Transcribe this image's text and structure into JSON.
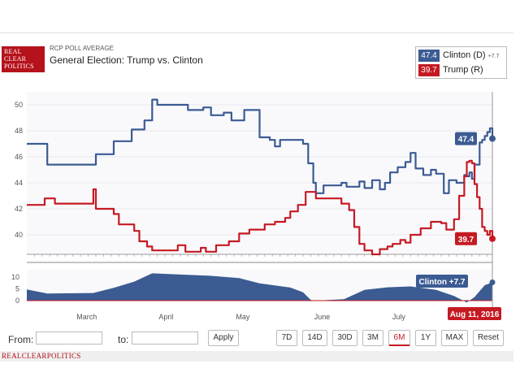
{
  "header": {
    "logo_lines": [
      "REAL",
      "CLEAR",
      "POLITICS"
    ],
    "subtitle": "RCP POLL AVERAGE",
    "title": "General Election: Trump vs. Clinton"
  },
  "legend": [
    {
      "value": "47.4",
      "label": "Clinton (D)",
      "change": "+7.7",
      "color": "#3b5b92"
    },
    {
      "value": "39.7",
      "label": "Trump (R)",
      "change": "",
      "color": "#c51a22"
    }
  ],
  "chart_data": {
    "type": "line",
    "x_unit": "date",
    "x_range": [
      "2016-02-11",
      "2016-08-11"
    ],
    "x_tick_labels": [
      "March",
      "April",
      "May",
      "June",
      "July"
    ],
    "y_ticks": [
      40,
      42,
      44,
      46,
      48,
      50
    ],
    "ylim": [
      38.5,
      51
    ],
    "series": [
      {
        "name": "Clinton (D)",
        "color": "#3b5b92",
        "points": [
          [
            "2016-02-11",
            47.0
          ],
          [
            "2016-02-17",
            47.0
          ],
          [
            "2016-02-19",
            45.4
          ],
          [
            "2016-03-08",
            45.4
          ],
          [
            "2016-03-09",
            46.2
          ],
          [
            "2016-03-14",
            46.2
          ],
          [
            "2016-03-16",
            47.2
          ],
          [
            "2016-03-21",
            47.2
          ],
          [
            "2016-03-23",
            48.1
          ],
          [
            "2016-03-28",
            48.8
          ],
          [
            "2016-03-31",
            50.4
          ],
          [
            "2016-04-02",
            50.0
          ],
          [
            "2016-04-10",
            50.0
          ],
          [
            "2016-04-14",
            49.6
          ],
          [
            "2016-04-20",
            49.8
          ],
          [
            "2016-04-23",
            49.2
          ],
          [
            "2016-04-28",
            49.4
          ],
          [
            "2016-05-01",
            48.8
          ],
          [
            "2016-05-03",
            48.8
          ],
          [
            "2016-05-06",
            49.6
          ],
          [
            "2016-05-10",
            49.6
          ],
          [
            "2016-05-12",
            47.5
          ],
          [
            "2016-05-16",
            47.3
          ],
          [
            "2016-05-18",
            46.8
          ],
          [
            "2016-05-20",
            47.3
          ],
          [
            "2016-05-24",
            47.3
          ],
          [
            "2016-05-26",
            47.3
          ],
          [
            "2016-05-29",
            47.0
          ],
          [
            "2016-05-31",
            45.5
          ],
          [
            "2016-06-02",
            44.0
          ],
          [
            "2016-06-03",
            43.2
          ],
          [
            "2016-06-06",
            43.8
          ],
          [
            "2016-06-10",
            43.8
          ],
          [
            "2016-06-13",
            44.0
          ],
          [
            "2016-06-15",
            43.7
          ],
          [
            "2016-06-20",
            44.1
          ],
          [
            "2016-06-22",
            43.6
          ],
          [
            "2016-06-25",
            44.2
          ],
          [
            "2016-06-28",
            43.5
          ],
          [
            "2016-06-30",
            44.0
          ],
          [
            "2016-07-02",
            44.8
          ],
          [
            "2016-07-05",
            45.2
          ],
          [
            "2016-07-08",
            45.6
          ],
          [
            "2016-07-10",
            46.3
          ],
          [
            "2016-07-12",
            45.1
          ],
          [
            "2016-07-15",
            44.6
          ],
          [
            "2016-07-18",
            45.0
          ],
          [
            "2016-07-20",
            44.7
          ],
          [
            "2016-07-23",
            43.2
          ],
          [
            "2016-07-25",
            44.2
          ],
          [
            "2016-07-28",
            44.0
          ],
          [
            "2016-07-31",
            44.6
          ],
          [
            "2016-08-01",
            44.5
          ],
          [
            "2016-08-02",
            44.8
          ],
          [
            "2016-08-03",
            44.3
          ],
          [
            "2016-08-04",
            45.4
          ],
          [
            "2016-08-06",
            47.1
          ],
          [
            "2016-08-07",
            47.3
          ],
          [
            "2016-08-08",
            47.6
          ],
          [
            "2016-08-09",
            47.9
          ],
          [
            "2016-08-10",
            48.2
          ],
          [
            "2016-08-11",
            47.4
          ]
        ]
      },
      {
        "name": "Trump (R)",
        "color": "#c51a22",
        "points": [
          [
            "2016-02-11",
            42.3
          ],
          [
            "2016-02-16",
            42.3
          ],
          [
            "2016-02-18",
            42.8
          ],
          [
            "2016-02-22",
            42.4
          ],
          [
            "2016-03-07",
            42.4
          ],
          [
            "2016-03-08",
            43.5
          ],
          [
            "2016-03-09",
            42.0
          ],
          [
            "2016-03-14",
            42.0
          ],
          [
            "2016-03-16",
            41.6
          ],
          [
            "2016-03-18",
            40.8
          ],
          [
            "2016-03-21",
            40.8
          ],
          [
            "2016-03-24",
            40.3
          ],
          [
            "2016-03-26",
            39.5
          ],
          [
            "2016-03-29",
            39.1
          ],
          [
            "2016-03-31",
            38.8
          ],
          [
            "2016-04-08",
            38.8
          ],
          [
            "2016-04-10",
            39.2
          ],
          [
            "2016-04-13",
            38.7
          ],
          [
            "2016-04-19",
            39.0
          ],
          [
            "2016-04-21",
            38.7
          ],
          [
            "2016-04-25",
            39.2
          ],
          [
            "2016-04-30",
            39.5
          ],
          [
            "2016-05-04",
            40.1
          ],
          [
            "2016-05-08",
            40.4
          ],
          [
            "2016-05-14",
            40.8
          ],
          [
            "2016-05-18",
            41.0
          ],
          [
            "2016-05-22",
            41.3
          ],
          [
            "2016-05-24",
            41.8
          ],
          [
            "2016-05-27",
            42.3
          ],
          [
            "2016-05-30",
            43.3
          ],
          [
            "2016-06-01",
            43.3
          ],
          [
            "2016-06-03",
            42.8
          ],
          [
            "2016-06-10",
            42.8
          ],
          [
            "2016-06-13",
            42.4
          ],
          [
            "2016-06-16",
            41.9
          ],
          [
            "2016-06-18",
            40.6
          ],
          [
            "2016-06-20",
            39.3
          ],
          [
            "2016-06-22",
            38.8
          ],
          [
            "2016-06-25",
            38.5
          ],
          [
            "2016-06-28",
            38.9
          ],
          [
            "2016-07-01",
            39.1
          ],
          [
            "2016-07-03",
            39.3
          ],
          [
            "2016-07-06",
            39.6
          ],
          [
            "2016-07-08",
            39.4
          ],
          [
            "2016-07-10",
            40.0
          ],
          [
            "2016-07-14",
            40.5
          ],
          [
            "2016-07-18",
            41.0
          ],
          [
            "2016-07-22",
            40.9
          ],
          [
            "2016-07-24",
            40.4
          ],
          [
            "2016-07-27",
            41.2
          ],
          [
            "2016-07-29",
            43.0
          ],
          [
            "2016-07-31",
            44.5
          ],
          [
            "2016-08-01",
            45.6
          ],
          [
            "2016-08-02",
            45.7
          ],
          [
            "2016-08-03",
            45.5
          ],
          [
            "2016-08-04",
            43.9
          ],
          [
            "2016-08-05",
            42.9
          ],
          [
            "2016-08-06",
            42.0
          ],
          [
            "2016-08-07",
            40.6
          ],
          [
            "2016-08-08",
            40.3
          ],
          [
            "2016-08-09",
            40.0
          ],
          [
            "2016-08-10",
            40.3
          ],
          [
            "2016-08-11",
            39.7
          ]
        ]
      }
    ],
    "spread": {
      "name": "Clinton",
      "color": "#3b5b92",
      "y_ticks": [
        0,
        5,
        10
      ],
      "ylim": [
        0,
        13
      ],
      "points": [
        [
          "2016-02-11",
          4.7
        ],
        [
          "2016-02-19",
          3.0
        ],
        [
          "2016-03-08",
          3.2
        ],
        [
          "2016-03-16",
          5.4
        ],
        [
          "2016-03-24",
          8.0
        ],
        [
          "2016-03-31",
          11.5
        ],
        [
          "2016-04-10",
          11.0
        ],
        [
          "2016-04-22",
          10.5
        ],
        [
          "2016-05-04",
          9.5
        ],
        [
          "2016-05-12",
          7.3
        ],
        [
          "2016-05-24",
          5.5
        ],
        [
          "2016-05-29",
          3.5
        ],
        [
          "2016-06-01",
          0.3
        ],
        [
          "2016-06-03",
          0.0
        ],
        [
          "2016-06-14",
          0.6
        ],
        [
          "2016-06-22",
          4.5
        ],
        [
          "2016-07-01",
          5.6
        ],
        [
          "2016-07-10",
          6.0
        ],
        [
          "2016-07-20",
          4.5
        ],
        [
          "2016-07-27",
          2.0
        ],
        [
          "2016-08-01",
          -0.8
        ],
        [
          "2016-08-04",
          1.5
        ],
        [
          "2016-08-08",
          6.5
        ],
        [
          "2016-08-11",
          7.7
        ]
      ]
    },
    "end_labels": {
      "clinton": "47.4",
      "trump": "39.7",
      "spread": "Clinton +7.7",
      "date": "Aug 11, 2016"
    }
  },
  "controls": {
    "from_label": "From:",
    "to_label": "to:",
    "apply_label": "Apply",
    "ranges": [
      "7D",
      "14D",
      "30D",
      "3M",
      "6M",
      "1Y",
      "MAX"
    ],
    "active_range": "6M",
    "reset_label": "Reset"
  },
  "footer": {
    "text": "REALCLEARPOLITICS"
  }
}
